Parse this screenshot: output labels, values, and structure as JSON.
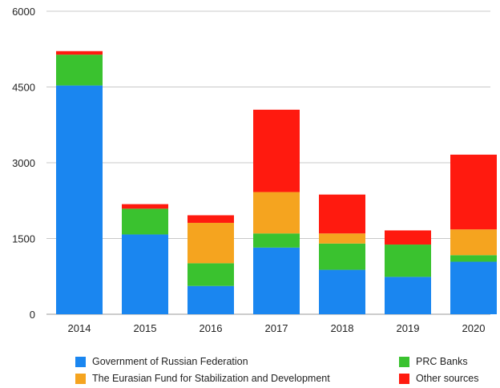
{
  "chart_data": {
    "type": "bar",
    "stacked": true,
    "title": "",
    "xlabel": "",
    "ylabel": "",
    "categories": [
      "2014",
      "2015",
      "2016",
      "2017",
      "2018",
      "2019",
      "2020"
    ],
    "ylim": [
      0,
      6000
    ],
    "yticks": [
      "0",
      "1500",
      "3000",
      "4500",
      "6000"
    ],
    "grid": true,
    "legend_position": "bottom",
    "series": [
      {
        "name": "Government of Russian Federation",
        "color": "#1a86f0",
        "values": [
          4530,
          1580,
          560,
          1320,
          880,
          740,
          1040
        ]
      },
      {
        "name": "PRC Banks",
        "color": "#3ac22f",
        "values": [
          610,
          510,
          450,
          280,
          520,
          640,
          130
        ]
      },
      {
        "name": "The Eurasian Fund for Stabilization and Development",
        "color": "#f5a41f",
        "values": [
          0,
          0,
          800,
          820,
          200,
          0,
          510
        ]
      },
      {
        "name": "Other sources",
        "color": "#ff1a0f",
        "values": [
          70,
          90,
          150,
          1630,
          770,
          280,
          1480
        ]
      }
    ]
  }
}
